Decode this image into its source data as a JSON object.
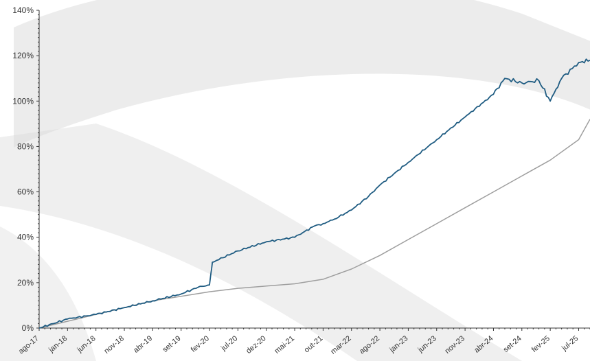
{
  "colors": {
    "primary_series": "#1f5c82",
    "secondary_series": "#9e9e9e",
    "watermark": "#dcdcdc",
    "axis": "#333333"
  },
  "chart_data": {
    "type": "line",
    "title": "",
    "xlabel": "",
    "ylabel": "",
    "ylim": [
      0,
      140
    ],
    "y_ticks": [
      "0%",
      "20%",
      "40%",
      "60%",
      "80%",
      "100%",
      "120%",
      "140%"
    ],
    "x_ticks": [
      "ago-17",
      "jan-18",
      "jun-18",
      "nov-18",
      "abr-19",
      "set-19",
      "fev-20",
      "jul-20",
      "dez-20",
      "mai-21",
      "out-21",
      "mar-22",
      "ago-22",
      "jan-23",
      "jun-23",
      "nov-23",
      "abr-24",
      "set-24",
      "fev-25",
      "jul-25"
    ],
    "grid": false,
    "legend": "none",
    "series": [
      {
        "color": "#1f5c82",
        "x": [
          "ago-17",
          "jan-18",
          "jun-18",
          "nov-18",
          "abr-19",
          "set-19",
          "jan-20",
          "fev-20",
          "mar-20",
          "jul-20",
          "dez-20",
          "mai-21",
          "set-21",
          "out-21",
          "dez-21",
          "mar-22",
          "jun-22",
          "ago-22",
          "jan-23",
          "jun-23",
          "nov-23",
          "abr-24",
          "jun-24",
          "set-24",
          "dez-24",
          "fev-25",
          "abr-25",
          "jul-25",
          "set-25"
        ],
        "values": [
          0,
          4,
          6,
          9,
          12,
          15,
          18,
          19,
          29,
          34,
          38,
          40,
          45,
          46,
          48,
          52,
          58,
          63,
          73,
          83,
          93,
          103,
          110,
          108,
          109,
          100,
          110,
          117,
          118
        ]
      },
      {
        "color": "#9e9e9e",
        "x": [
          "ago-17",
          "jan-18",
          "jun-18",
          "nov-18",
          "abr-19",
          "set-19",
          "fev-20",
          "jul-20",
          "dez-20",
          "mai-21",
          "out-21",
          "mar-22",
          "ago-22",
          "jan-23",
          "jun-23",
          "nov-23",
          "abr-24",
          "set-24",
          "fev-25",
          "jul-25",
          "set-25"
        ],
        "values": [
          0,
          3,
          6,
          9,
          12,
          14,
          16,
          17.5,
          18.5,
          19.5,
          21.5,
          26,
          32,
          39,
          46,
          53,
          60,
          67,
          74,
          83,
          92
        ]
      }
    ]
  }
}
